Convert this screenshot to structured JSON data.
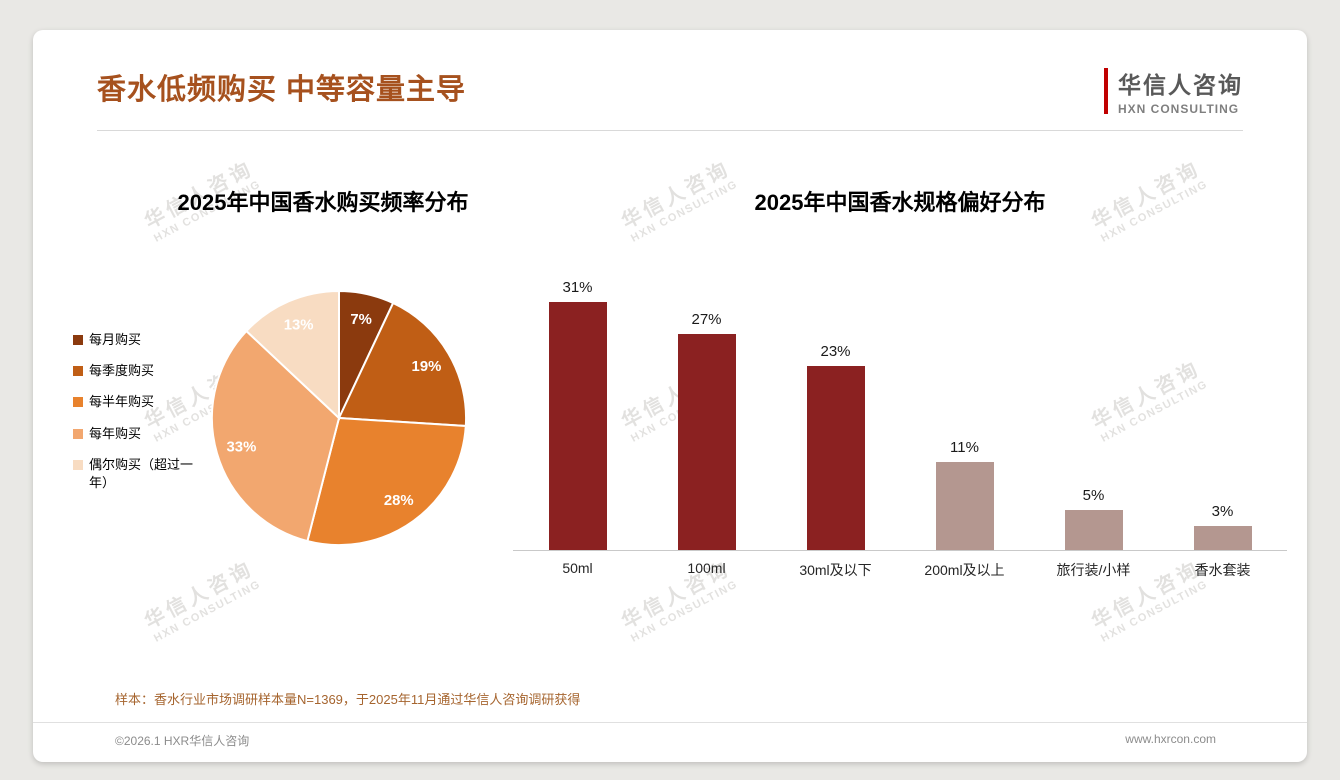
{
  "slide": {
    "title": "香水低频购买 中等容量主导",
    "accent_color": "#a6511e",
    "logo": {
      "cn": "华信人咨询",
      "en": "HXN CONSULTING",
      "bar_color": "#c00000"
    },
    "watermark": {
      "cn": "华信人咨询",
      "en": "HXN CONSULTING"
    },
    "footnote": "样本：香水行业市场调研样本量N=1369，于2025年11月通过华信人咨询调研获得",
    "copyright": "©2026.1 HXR华信人咨询",
    "website": "www.hxrcon.com"
  },
  "chart_data": [
    {
      "type": "pie",
      "title": "2025年中国香水购买频率分布",
      "labels": [
        "每月购买",
        "每季度购买",
        "每半年购买",
        "每年购买",
        "偶尔购买（超过一年）"
      ],
      "values": [
        7,
        19,
        28,
        33,
        13
      ],
      "value_labels": [
        "7%",
        "19%",
        "28%",
        "33%",
        "13%"
      ],
      "colors": [
        "#8b3a0e",
        "#c05e15",
        "#e8822d",
        "#f2a76f",
        "#f8dcc2"
      ],
      "legend_position": "left",
      "start_angle_deg": 0,
      "direction": "clockwise"
    },
    {
      "type": "bar",
      "title": "2025年中国香水规格偏好分布",
      "categories": [
        "50ml",
        "100ml",
        "30ml及以下",
        "200ml及以上",
        "旅行装/小样",
        "香水套装"
      ],
      "values": [
        31,
        27,
        23,
        11,
        5,
        3
      ],
      "value_labels": [
        "31%",
        "27%",
        "23%",
        "11%",
        "5%",
        "3%"
      ],
      "bar_colors": [
        "#8b2121",
        "#8b2121",
        "#8b2121",
        "#b49790",
        "#b49790",
        "#b49790"
      ],
      "ylim": [
        0,
        35
      ],
      "grid": false,
      "legend_position": "none"
    }
  ]
}
